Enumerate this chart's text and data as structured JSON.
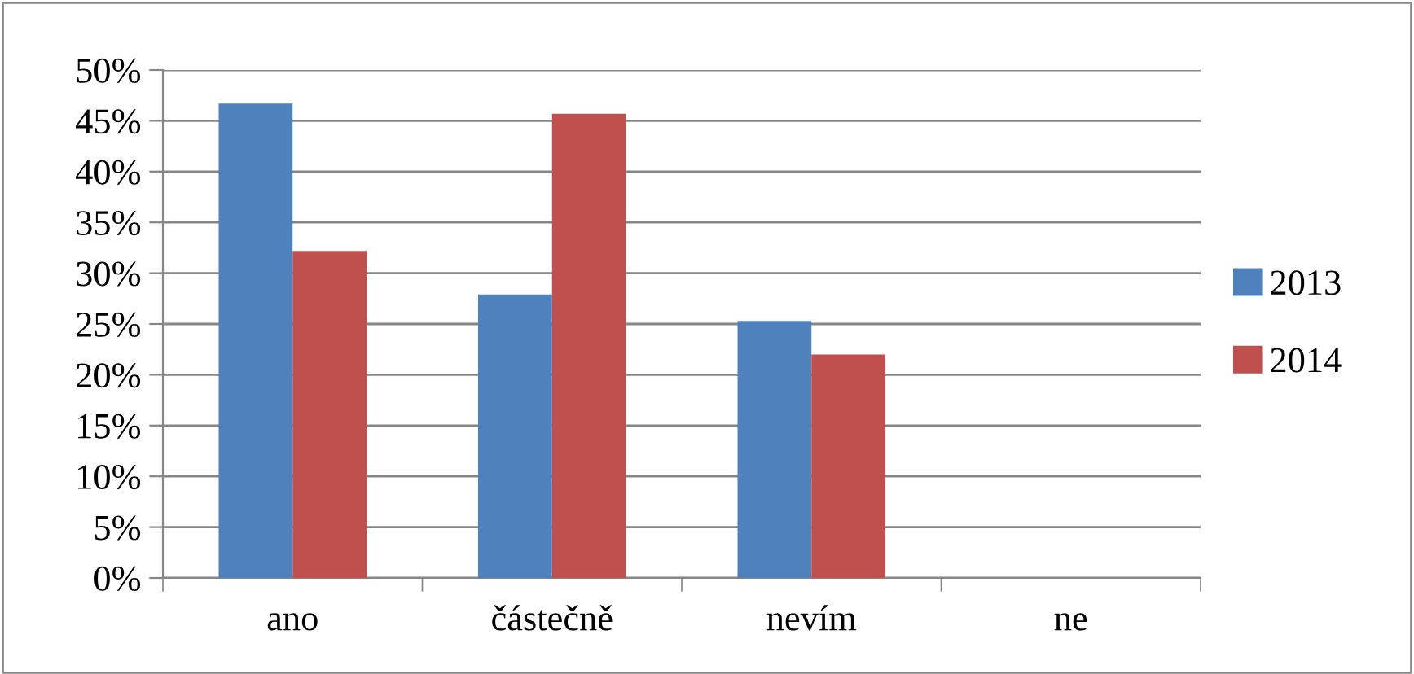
{
  "chart_data": {
    "type": "bar",
    "categories": [
      "ano",
      "částečně",
      "nevím",
      "ne"
    ],
    "series": [
      {
        "name": "2013",
        "color": "#4f81bd",
        "values": [
          46.7,
          27.9,
          25.3,
          0
        ]
      },
      {
        "name": "2014",
        "color": "#c0504d",
        "values": [
          32.2,
          45.7,
          22.0,
          0
        ]
      }
    ],
    "ylim": [
      0,
      50
    ],
    "yticks": [
      {
        "value": 0,
        "label": "0%"
      },
      {
        "value": 5,
        "label": "5%"
      },
      {
        "value": 10,
        "label": "10%"
      },
      {
        "value": 15,
        "label": "15%"
      },
      {
        "value": 20,
        "label": "20%"
      },
      {
        "value": 25,
        "label": "25%"
      },
      {
        "value": 30,
        "label": "30%"
      },
      {
        "value": 35,
        "label": "35%"
      },
      {
        "value": 40,
        "label": "40%"
      },
      {
        "value": 45,
        "label": "45%"
      },
      {
        "value": 50,
        "label": "50%"
      }
    ],
    "grid": "y",
    "legend": "right"
  }
}
